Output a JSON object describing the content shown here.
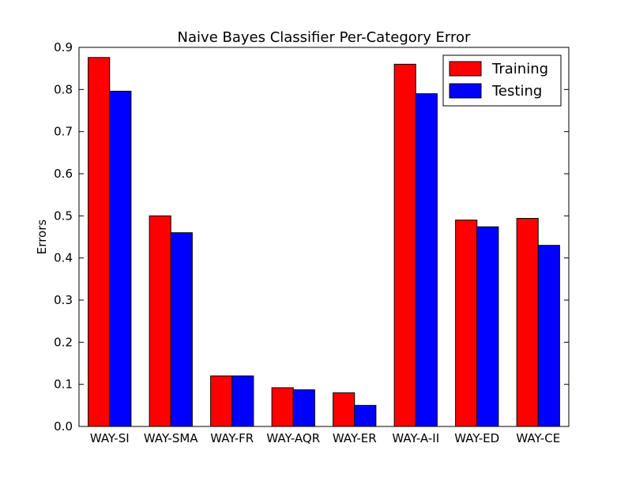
{
  "chart_data": {
    "type": "bar",
    "title": "Naive Bayes Classifier Per-Category Error",
    "xlabel": "",
    "ylabel": "Errors",
    "ylim": [
      0,
      0.9
    ],
    "yticks": [
      "0.0",
      "0.1",
      "0.2",
      "0.3",
      "0.4",
      "0.5",
      "0.6",
      "0.7",
      "0.8",
      "0.9"
    ],
    "categories": [
      "WAY-SI",
      "WAY-SMA",
      "WAY-FR",
      "WAY-AQR",
      "WAY-ER",
      "WAY-A-II",
      "WAY-ED",
      "WAY-CE"
    ],
    "series": [
      {
        "name": "Training",
        "color": "#ff0000",
        "values": [
          0.876,
          0.5,
          0.12,
          0.092,
          0.08,
          0.86,
          0.49,
          0.494
        ]
      },
      {
        "name": "Testing",
        "color": "#0000ff",
        "values": [
          0.796,
          0.46,
          0.12,
          0.087,
          0.05,
          0.79,
          0.474,
          0.43
        ]
      }
    ],
    "legend_position": "top-right",
    "grid": false
  }
}
